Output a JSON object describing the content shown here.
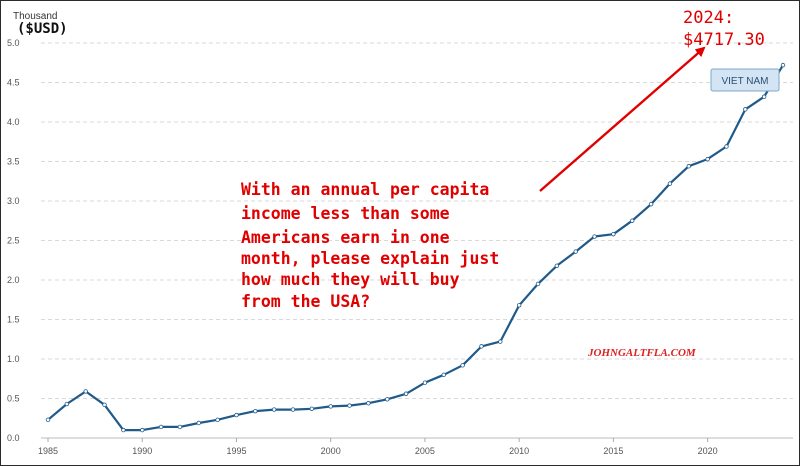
{
  "chart_data": {
    "type": "line",
    "unit_label": "Thousand",
    "currency_label": "($USD)",
    "ylim": [
      0,
      5
    ],
    "y_ticks": [
      "0.0",
      "0.5",
      "1.0",
      "1.5",
      "2.0",
      "2.5",
      "3.0",
      "3.5",
      "4.0",
      "4.5",
      "5.0"
    ],
    "x_ticks": [
      "1985",
      "1990",
      "1995",
      "2000",
      "2005",
      "2010",
      "2015",
      "2020"
    ],
    "xlim": [
      1985,
      2024
    ],
    "grid": "horizontal dashed",
    "series": [
      {
        "name": "VIET NAM",
        "color": "#1f5a8a",
        "points": [
          [
            1985,
            0.23
          ],
          [
            1986,
            0.43
          ],
          [
            1987,
            0.59
          ],
          [
            1988,
            0.42
          ],
          [
            1989,
            0.1
          ],
          [
            1990,
            0.1
          ],
          [
            1991,
            0.14
          ],
          [
            1992,
            0.14
          ],
          [
            1993,
            0.19
          ],
          [
            1994,
            0.23
          ],
          [
            1995,
            0.29
          ],
          [
            1996,
            0.34
          ],
          [
            1997,
            0.36
          ],
          [
            1998,
            0.36
          ],
          [
            1999,
            0.37
          ],
          [
            2000,
            0.4
          ],
          [
            2001,
            0.41
          ],
          [
            2002,
            0.44
          ],
          [
            2003,
            0.49
          ],
          [
            2004,
            0.56
          ],
          [
            2005,
            0.7
          ],
          [
            2006,
            0.8
          ],
          [
            2007,
            0.92
          ],
          [
            2008,
            1.16
          ],
          [
            2009,
            1.22
          ],
          [
            2010,
            1.68
          ],
          [
            2011,
            1.95
          ],
          [
            2012,
            2.18
          ],
          [
            2013,
            2.36
          ],
          [
            2014,
            2.55
          ],
          [
            2015,
            2.58
          ],
          [
            2016,
            2.75
          ],
          [
            2017,
            2.96
          ],
          [
            2018,
            3.22
          ],
          [
            2019,
            3.44
          ],
          [
            2020,
            3.53
          ],
          [
            2021,
            3.69
          ],
          [
            2022,
            4.16
          ],
          [
            2023,
            4.32
          ],
          [
            2024,
            4.72
          ]
        ]
      }
    ],
    "annotations": {
      "value_line1": "2024:",
      "value_line2": "$4717.30",
      "callout_lines": [
        "With an annual per capita",
        "income less than some",
        "Americans earn in one",
        "month, please explain just",
        "how much they will buy",
        "from the USA?"
      ],
      "credit": "JOHNGALTFLA.COM",
      "accent_color": "#e00000"
    }
  }
}
